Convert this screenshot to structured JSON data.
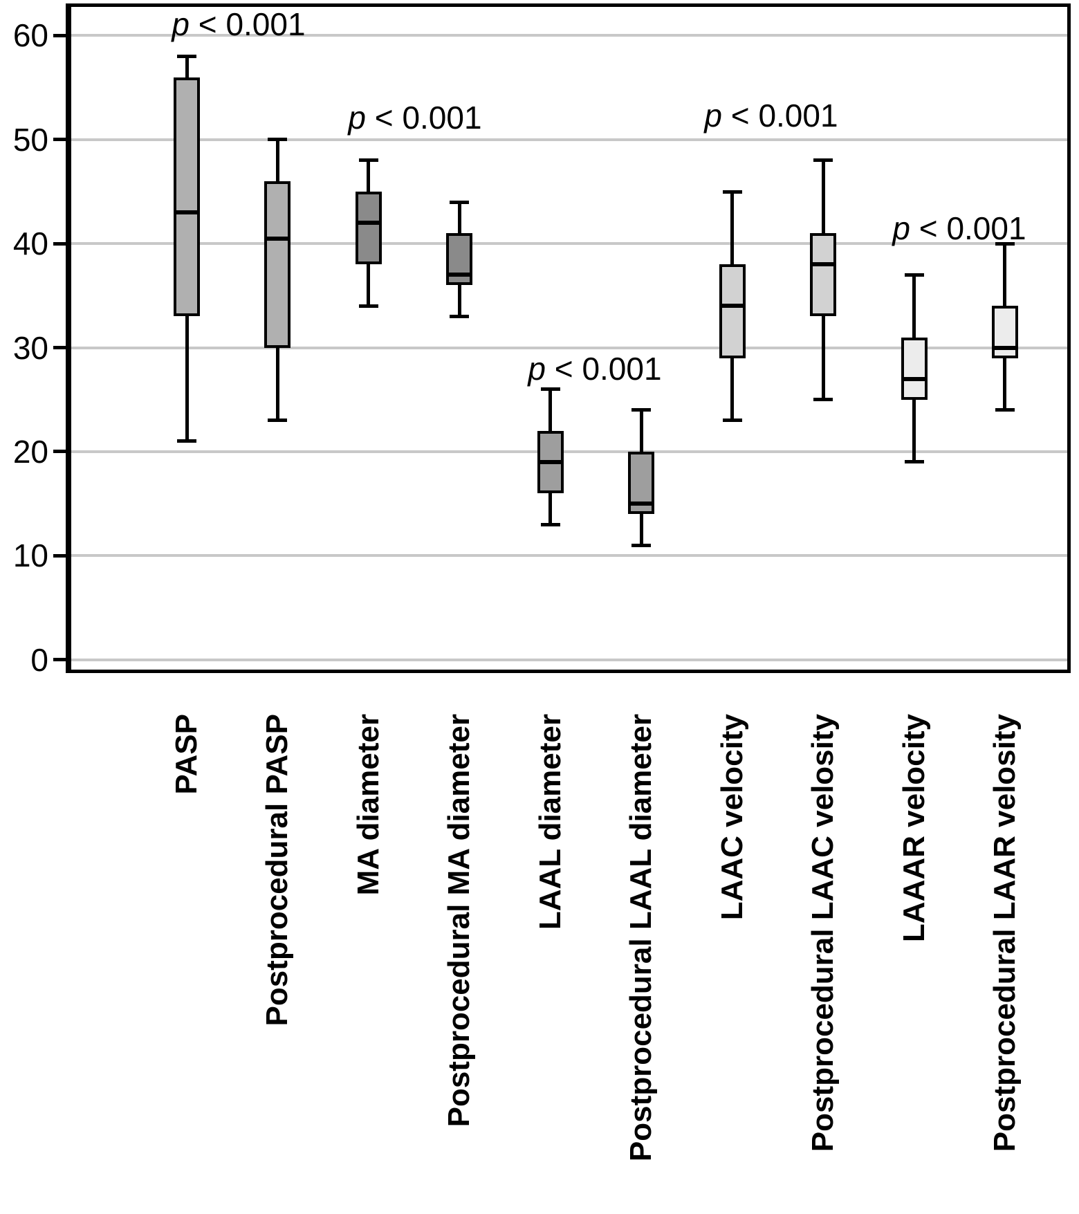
{
  "figure": {
    "title": "",
    "y_axis": {
      "ticks": [
        "0",
        "10",
        "20",
        "30",
        "40",
        "50",
        "60"
      ],
      "grid_color": "#c8c8c8",
      "frame_color": "#000000"
    }
  },
  "chart_data": {
    "type": "boxplot",
    "title": "",
    "xlabel": "",
    "ylabel": "",
    "ylim": [
      0,
      63
    ],
    "yticks": [
      0,
      10,
      20,
      30,
      40,
      50,
      60
    ],
    "grid": true,
    "legend": "none",
    "categories": [
      "PASP",
      "Postprocedural PASP",
      "MA diameter",
      "Postprocedural MA diameter",
      "LAAL diameter",
      "Postprocedural LAAL diameter",
      "LAAC velocity",
      "Postprocedural LAAC velosity",
      "LAAAR velocity",
      "Postprocedural LAAR velosity"
    ],
    "series": [
      {
        "name": "PASP",
        "whisker_low": 21,
        "q1": 33,
        "median": 43,
        "q3": 56,
        "whisker_high": 58,
        "fill": "#b0b0b0"
      },
      {
        "name": "Postprocedural PASP",
        "whisker_low": 23,
        "q1": 30,
        "median": 40.5,
        "q3": 46,
        "whisker_high": 50,
        "fill": "#b0b0b0"
      },
      {
        "name": "MA diameter",
        "whisker_low": 34,
        "q1": 38,
        "median": 42,
        "q3": 45,
        "whisker_high": 48,
        "fill": "#8a8a8a"
      },
      {
        "name": "Postprocedural MA diameter",
        "whisker_low": 33,
        "q1": 36,
        "median": 37,
        "q3": 41,
        "whisker_high": 44,
        "fill": "#8a8a8a"
      },
      {
        "name": "LAAL diameter",
        "whisker_low": 13,
        "q1": 16,
        "median": 19,
        "q3": 22,
        "whisker_high": 26,
        "fill": "#9e9e9e"
      },
      {
        "name": "Postprocedural LAAL diameter",
        "whisker_low": 11,
        "q1": 14,
        "median": 15,
        "q3": 20,
        "whisker_high": 24,
        "fill": "#9e9e9e"
      },
      {
        "name": "LAAC velocity",
        "whisker_low": 23,
        "q1": 29,
        "median": 34,
        "q3": 38,
        "whisker_high": 45,
        "fill": "#d2d2d2"
      },
      {
        "name": "Postprocedural LAAC velosity",
        "whisker_low": 25,
        "q1": 33,
        "median": 38,
        "q3": 41,
        "whisker_high": 48,
        "fill": "#d2d2d2"
      },
      {
        "name": "LAAAR velocity",
        "whisker_low": 19,
        "q1": 25,
        "median": 27,
        "q3": 31,
        "whisker_high": 37,
        "fill": "#ececec"
      },
      {
        "name": "Postprocedural LAAR velosity",
        "whisker_low": 24,
        "q1": 29,
        "median": 30,
        "q3": 34,
        "whisker_high": 40,
        "fill": "#ececec"
      }
    ],
    "annotations": [
      {
        "text": "p < 0.001",
        "above_pair": [
          "PASP",
          "Postprocedural PASP"
        ]
      },
      {
        "text": "p < 0.001",
        "above_pair": [
          "MA diameter",
          "Postprocedural MA diameter"
        ]
      },
      {
        "text": "p < 0.001",
        "above_pair": [
          "LAAL diameter",
          "Postprocedural LAAL diameter"
        ]
      },
      {
        "text": "p < 0.001",
        "above_pair": [
          "LAAC velocity",
          "Postprocedural LAAC velosity"
        ]
      },
      {
        "text": "p < 0.001",
        "above_pair": [
          "LAAAR velocity",
          "Postprocedural LAAR velosity"
        ]
      }
    ]
  }
}
